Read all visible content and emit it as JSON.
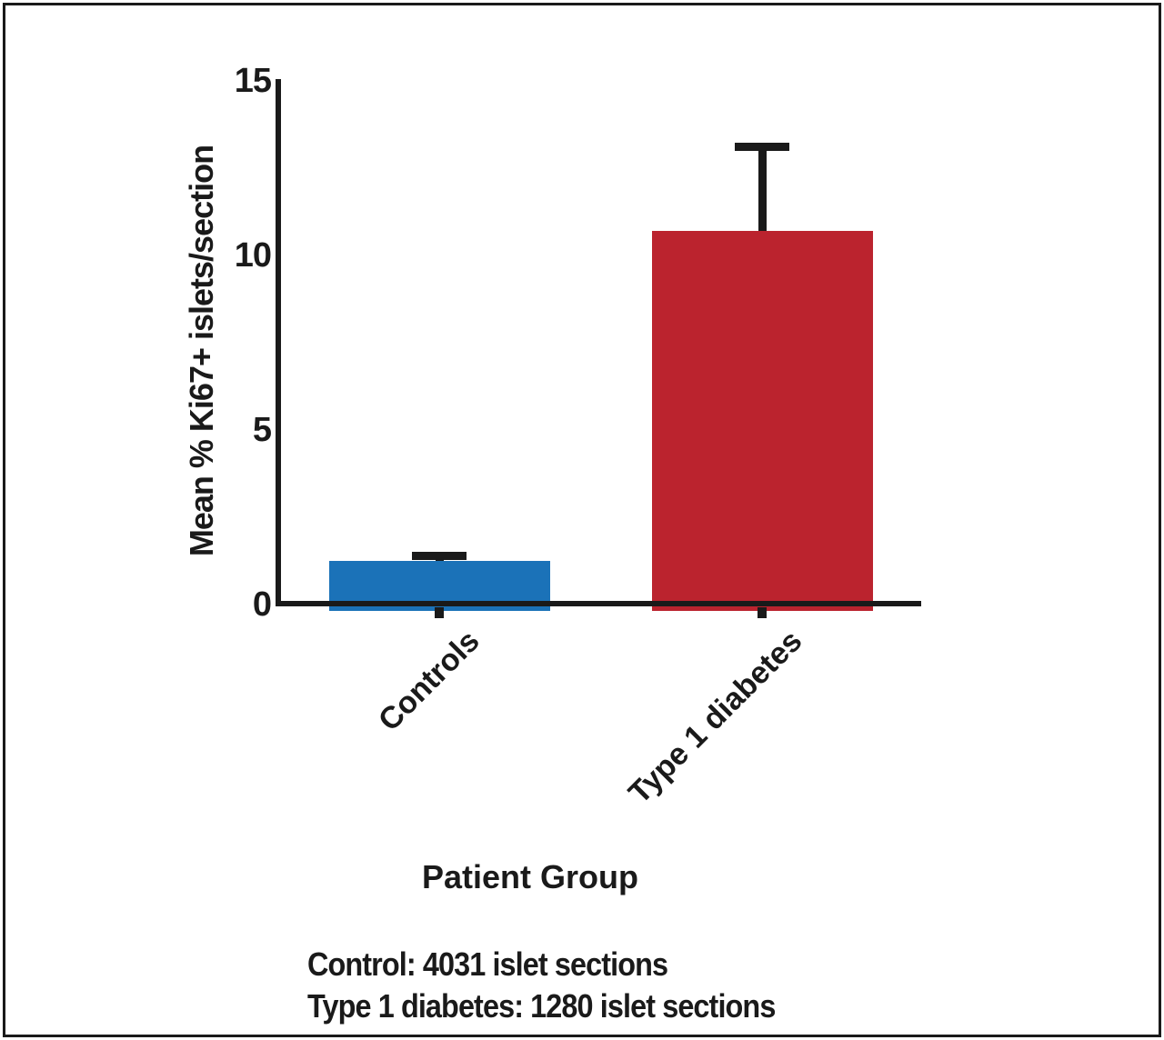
{
  "chart_data": {
    "type": "bar",
    "categories": [
      "Controls",
      "Type 1 diabetes"
    ],
    "values": [
      1.25,
      10.7
    ],
    "error_plus": [
      0.12,
      2.4
    ],
    "series_colors": [
      "#1b72b8",
      "#bb232e"
    ],
    "title": "",
    "xlabel": "Patient Group",
    "ylabel": "Mean % Ki67+ islets/section",
    "ylim": [
      0,
      15
    ],
    "yticks": [
      0,
      5,
      10,
      15
    ],
    "grid": false,
    "legend": "none",
    "error_bar_color": "#1a1a1a",
    "axis_color": "#1a1a1a"
  },
  "footnotes": [
    "Control: 4031 islet sections",
    "Type 1 diabetes: 1280 islet sections"
  ]
}
